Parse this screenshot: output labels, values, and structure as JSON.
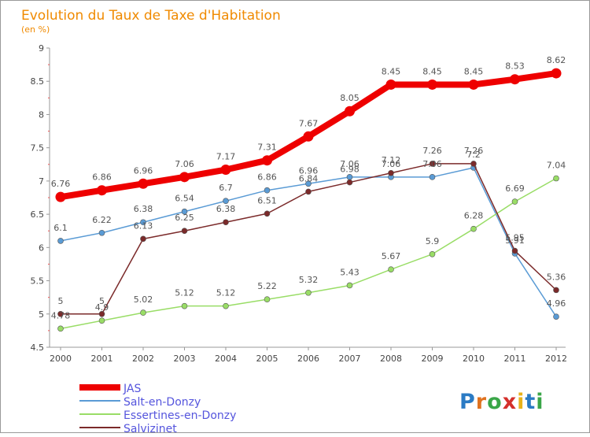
{
  "chart_data": {
    "type": "line",
    "title": "Evolution du Taux de Taxe d'Habitation",
    "subtitle": "(en %)",
    "x": [
      "2000",
      "2001",
      "2002",
      "2003",
      "2004",
      "2005",
      "2006",
      "2007",
      "2008",
      "2009",
      "2010",
      "2011",
      "2012"
    ],
    "yticks": [
      "4.5",
      "5",
      "5.5",
      "6",
      "6.5",
      "7",
      "7.5",
      "8",
      "8.5",
      "9"
    ],
    "ylim": [
      4.5,
      9
    ],
    "grid": "none",
    "legend_position": "bottom-left",
    "series": [
      {
        "name": "JAS",
        "color": "#ee0000",
        "values": [
          6.76,
          6.86,
          6.96,
          7.06,
          7.17,
          7.31,
          7.67,
          8.05,
          8.45,
          8.45,
          8.45,
          8.53,
          8.62
        ],
        "labels": [
          "6.76",
          "6.86",
          "6.96",
          "7.06",
          "7.17",
          "7.31",
          "7.67",
          "8.05",
          "8.45",
          "8.45",
          "8.45",
          "8.53",
          "8.62"
        ]
      },
      {
        "name": "Salt-en-Donzy",
        "color": "#5a9bd5",
        "values": [
          6.1,
          6.22,
          6.38,
          6.54,
          6.7,
          6.86,
          6.96,
          7.06,
          7.06,
          7.06,
          7.2,
          5.91,
          4.96
        ],
        "labels": [
          "6.1",
          "6.22",
          "6.38",
          "6.54",
          "6.7",
          "6.86",
          "6.96",
          "7.06",
          "7.06",
          "7.06",
          "7.2",
          "5.91",
          "4.96"
        ]
      },
      {
        "name": "Essertines-en-Donzy",
        "color": "#99dd66",
        "values": [
          4.78,
          4.9,
          5.02,
          5.12,
          5.12,
          5.22,
          5.32,
          5.43,
          5.67,
          5.9,
          6.28,
          6.69,
          7.04
        ],
        "labels": [
          "4.78",
          "4.9",
          "5.02",
          "5.12",
          "5.12",
          "5.22",
          "5.32",
          "5.43",
          "5.67",
          "5.9",
          "6.28",
          "6.69",
          "7.04"
        ]
      },
      {
        "name": "Salvizinet",
        "color": "#7b2a2a",
        "values": [
          5,
          5,
          6.13,
          6.25,
          6.38,
          6.51,
          6.84,
          6.98,
          7.12,
          7.26,
          7.26,
          5.95,
          5.36
        ],
        "labels": [
          "5",
          "5",
          "6.13",
          "6.25",
          "6.38",
          "6.51",
          "6.84",
          "6.98",
          "7.12",
          "7.26",
          "7.26",
          "5.95",
          "5.36"
        ]
      }
    ]
  },
  "branding": {
    "logo_text": "Proxiti"
  }
}
